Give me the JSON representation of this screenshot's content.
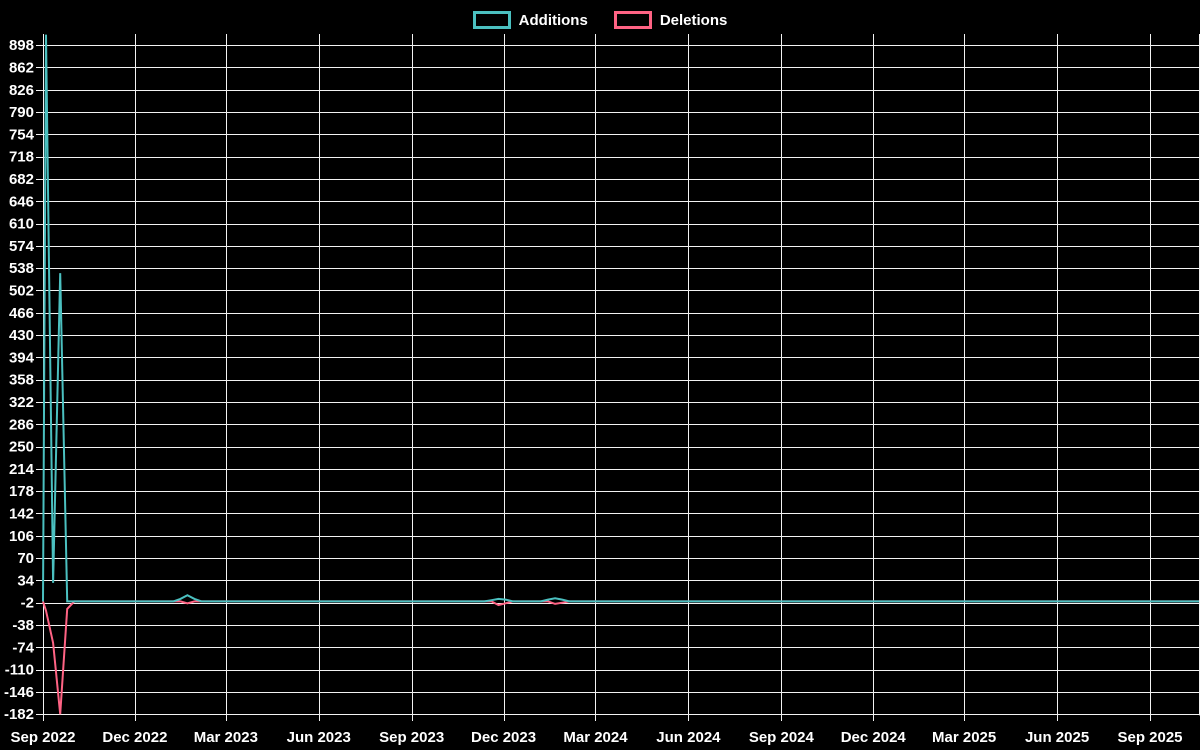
{
  "legend": {
    "items": [
      {
        "label": "Additions",
        "color": "#4bc0c0"
      },
      {
        "label": "Deletions",
        "color": "#ff6384"
      }
    ]
  },
  "colors": {
    "background": "#000000",
    "grid": "#f2f2f2",
    "text": "#ffffff",
    "additions": "#4bc0c0",
    "deletions": "#ff6384"
  },
  "chart_data": {
    "type": "line",
    "title": "",
    "xlabel": "",
    "ylabel": "",
    "legend_position": "top",
    "grid": true,
    "point_interval": "weekly",
    "baseline_value": 0,
    "x_axis": {
      "start": "2022-09-01",
      "last_tick": "2025-09-01",
      "plot_end": "2025-10-19",
      "ticks": [
        {
          "label": "Sep 2022",
          "date": "2022-09-01"
        },
        {
          "label": "Dec 2022",
          "date": "2022-12-01"
        },
        {
          "label": "Mar 2023",
          "date": "2023-03-01"
        },
        {
          "label": "Jun 2023",
          "date": "2023-06-01"
        },
        {
          "label": "Sep 2023",
          "date": "2023-09-01"
        },
        {
          "label": "Dec 2023",
          "date": "2023-12-01"
        },
        {
          "label": "Mar 2024",
          "date": "2024-03-01"
        },
        {
          "label": "Jun 2024",
          "date": "2024-06-01"
        },
        {
          "label": "Sep 2024",
          "date": "2024-09-01"
        },
        {
          "label": "Dec 2024",
          "date": "2024-12-01"
        },
        {
          "label": "Mar 2025",
          "date": "2025-03-01"
        },
        {
          "label": "Jun 2025",
          "date": "2025-06-01"
        },
        {
          "label": "Sep 2025",
          "date": "2025-09-01"
        }
      ]
    },
    "y_axis": {
      "min": -184,
      "max": 916,
      "tick_step": 36,
      "tick_labels": [
        898,
        862,
        826,
        790,
        754,
        718,
        682,
        646,
        610,
        574,
        538,
        502,
        466,
        430,
        394,
        358,
        322,
        286,
        250,
        214,
        178,
        142,
        106,
        70,
        34,
        -2,
        -38,
        -74,
        -110,
        -146,
        -182
      ]
    },
    "series": [
      {
        "name": "Additions",
        "color": "#4bc0c0",
        "first_week": "2022-09-04",
        "last_week": "2025-10-12",
        "nonzero_points": [
          [
            "2022-09-04",
            915
          ],
          [
            "2022-09-11",
            30
          ],
          [
            "2022-09-18",
            530
          ],
          [
            "2023-01-15",
            4
          ],
          [
            "2023-01-22",
            10
          ],
          [
            "2023-01-29",
            4
          ],
          [
            "2023-11-19",
            2
          ],
          [
            "2023-11-26",
            4
          ],
          [
            "2023-12-03",
            3
          ],
          [
            "2024-01-14",
            3
          ],
          [
            "2024-01-21",
            5
          ],
          [
            "2024-01-28",
            3
          ]
        ]
      },
      {
        "name": "Deletions",
        "color": "#ff6384",
        "first_week": "2022-09-04",
        "last_week": "2025-10-12",
        "nonzero_points": [
          [
            "2022-09-04",
            -15
          ],
          [
            "2022-09-11",
            -67
          ],
          [
            "2022-09-18",
            -182
          ],
          [
            "2022-09-25",
            -12
          ],
          [
            "2023-01-22",
            -3
          ],
          [
            "2023-11-26",
            -6
          ],
          [
            "2023-12-03",
            -3
          ],
          [
            "2024-01-21",
            -4
          ],
          [
            "2024-01-28",
            -2
          ]
        ]
      }
    ]
  }
}
